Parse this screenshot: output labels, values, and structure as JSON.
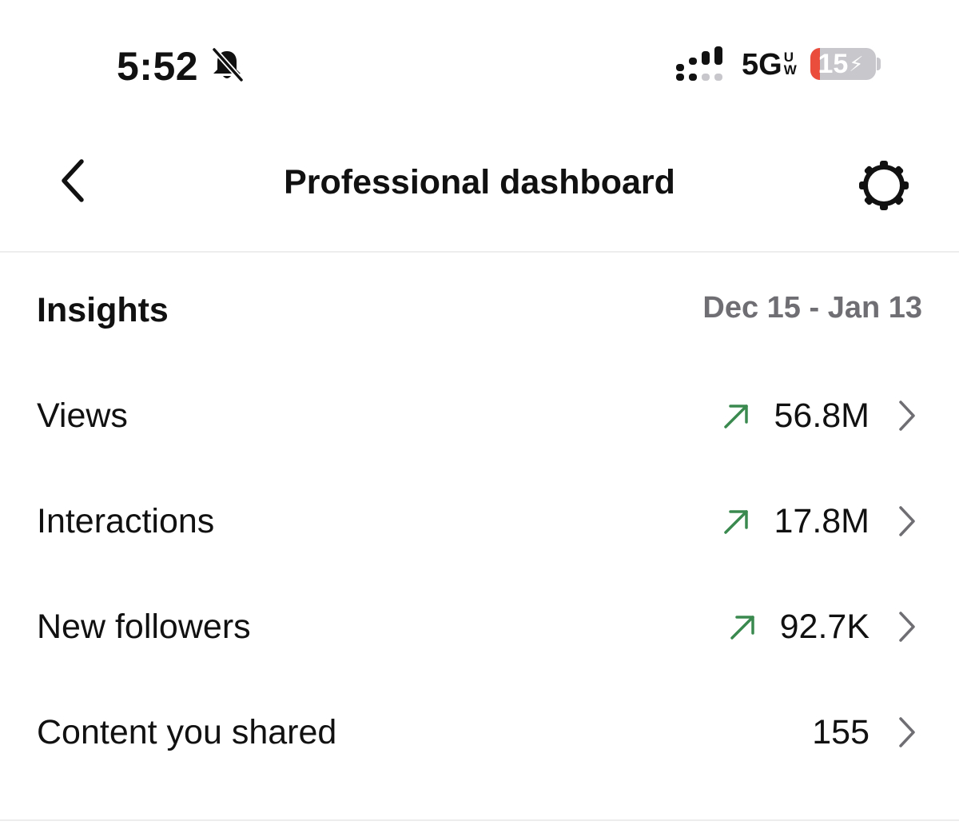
{
  "status_bar": {
    "time": "5:52",
    "network": "5G",
    "network_sup_top": "U",
    "network_sup_bottom": "W",
    "battery_level": "15",
    "battery_fraction": 0.15,
    "battery_color": "#eb4d3d",
    "icons": [
      "bell-slash-icon",
      "signal-icon",
      "battery-icon",
      "bolt-icon"
    ]
  },
  "header": {
    "title": "Professional dashboard",
    "icons": [
      "chevron-left-icon",
      "gear-icon"
    ]
  },
  "insights": {
    "title": "Insights",
    "date_range": "Dec 15 - Jan 13",
    "trend_color": "#3a8a4f",
    "rows": [
      {
        "label": "Views",
        "value": "56.8M",
        "trend": "up"
      },
      {
        "label": "Interactions",
        "value": "17.8M",
        "trend": "up"
      },
      {
        "label": "New followers",
        "value": "92.7K",
        "trend": "up"
      },
      {
        "label": "Content you shared",
        "value": "155",
        "trend": "none"
      }
    ]
  }
}
